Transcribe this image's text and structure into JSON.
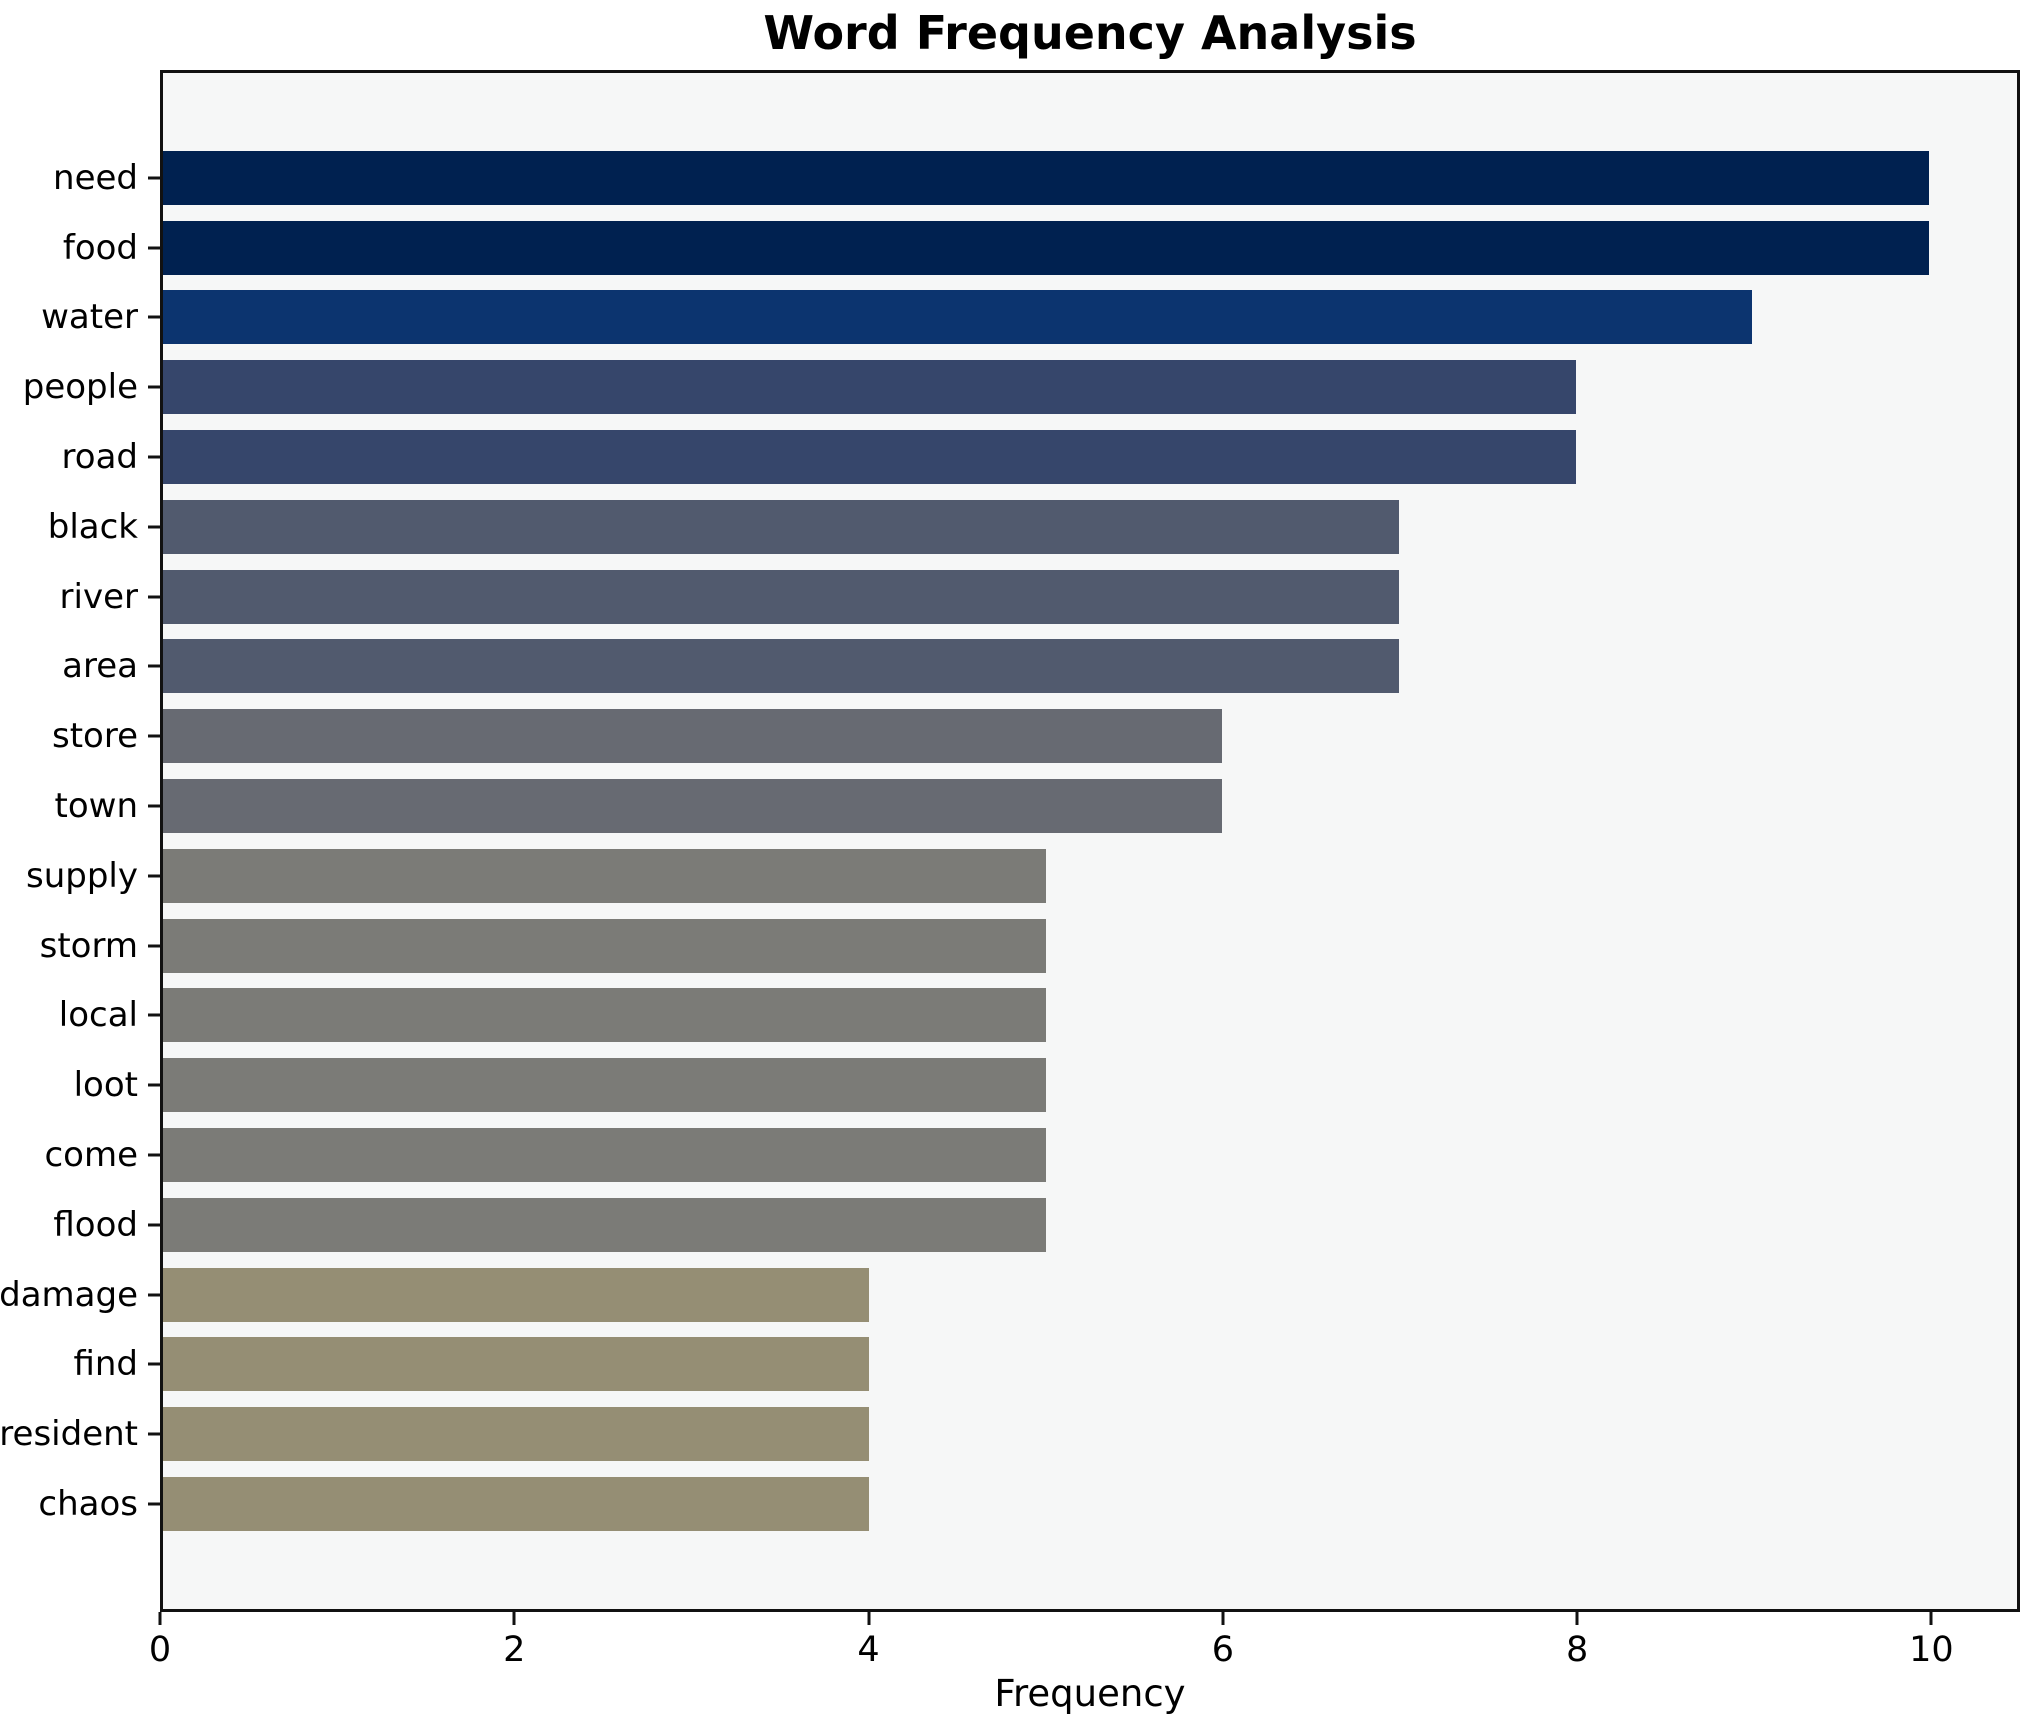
{
  "title": "Word Frequency Analysis",
  "chart_data": {
    "type": "bar",
    "orientation": "horizontal",
    "title": "Word Frequency Analysis",
    "xlabel": "Frequency",
    "ylabel": "",
    "categories": [
      "need",
      "food",
      "water",
      "people",
      "road",
      "black",
      "river",
      "area",
      "store",
      "town",
      "supply",
      "storm",
      "local",
      "loot",
      "come",
      "flood",
      "damage",
      "find",
      "resident",
      "chaos"
    ],
    "values": [
      10,
      10,
      9,
      8,
      8,
      7,
      7,
      7,
      6,
      6,
      5,
      5,
      5,
      5,
      5,
      5,
      4,
      4,
      4,
      4
    ],
    "bar_colors": [
      "#002150",
      "#002150",
      "#0c346f",
      "#36466b",
      "#36466b",
      "#515a6e",
      "#515a6e",
      "#515a6e",
      "#676a72",
      "#676a72",
      "#7b7b77",
      "#7b7b77",
      "#7b7b77",
      "#7b7b77",
      "#7b7b77",
      "#7b7b77",
      "#958e74",
      "#958e74",
      "#958e74",
      "#958e74"
    ],
    "x_ticks": [
      0,
      2,
      4,
      6,
      8,
      10
    ],
    "xlim": [
      0,
      10.5
    ],
    "grid": false,
    "legend_position": "none",
    "plot_background": "#f6f7f7",
    "figure_background": "#ffffff",
    "bar_edge_color": "none"
  }
}
